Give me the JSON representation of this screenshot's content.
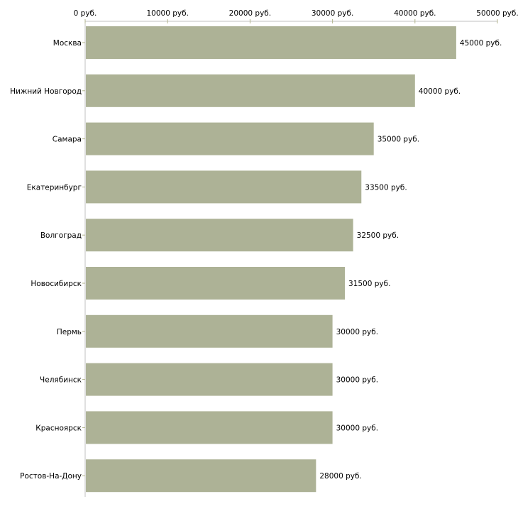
{
  "chart_data": {
    "type": "bar",
    "orientation": "horizontal",
    "title": "",
    "xlabel": "",
    "ylabel": "",
    "unit_suffix": " руб.",
    "xlim": [
      0,
      50000
    ],
    "x_ticks": [
      0,
      10000,
      20000,
      30000,
      40000,
      50000
    ],
    "x_tick_labels": [
      "0 руб.",
      "10000 руб.",
      "20000 руб.",
      "30000 руб.",
      "40000 руб.",
      "50000 руб."
    ],
    "axis_position": "top",
    "grid": false,
    "categories": [
      "Москва",
      "Нижний Новгород",
      "Самара",
      "Екатеринбург",
      "Волгоград",
      "Новосибирск",
      "Пермь",
      "Челябинск",
      "Красноярск",
      "Ростов-На-Дону"
    ],
    "values": [
      45000,
      40000,
      35000,
      33500,
      32500,
      31500,
      30000,
      30000,
      30000,
      28000
    ],
    "data_labels": [
      "45000 руб.",
      "40000 руб.",
      "35000 руб.",
      "33500 руб.",
      "32500 руб.",
      "31500 руб.",
      "30000 руб.",
      "30000 руб.",
      "30000 руб.",
      "28000 руб."
    ],
    "colors": {
      "bar": "#adb296",
      "axis": "#c0c0c0",
      "tick": "#b3b58e"
    }
  }
}
